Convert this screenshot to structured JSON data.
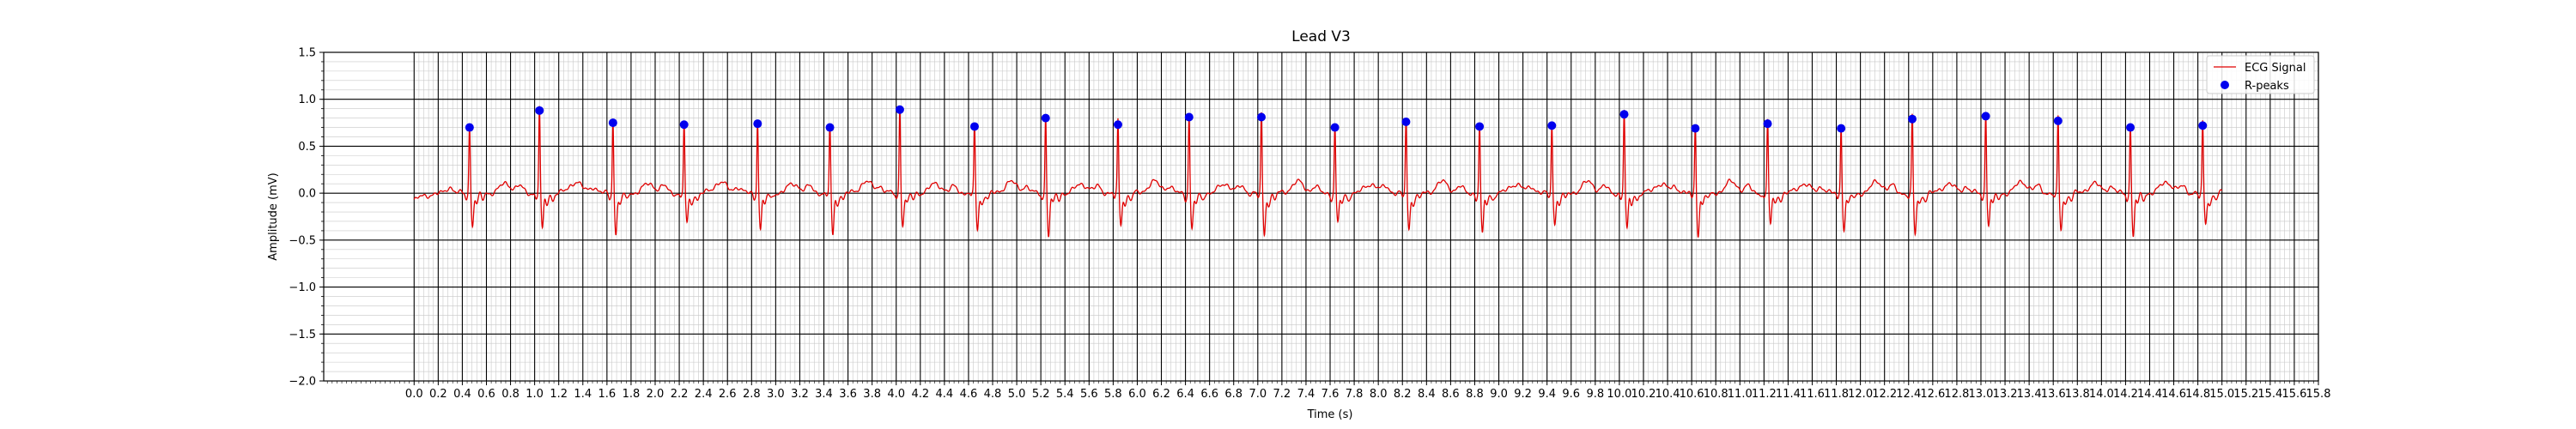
{
  "chart_data": {
    "type": "line",
    "title": "Lead V3",
    "xlabel": "Time (s)",
    "ylabel": "Amplitude (mV)",
    "xlim": [
      -0.75,
      15.8
    ],
    "ylim": [
      -2.0,
      1.5
    ],
    "xticks": [
      0.0,
      0.2,
      0.4,
      0.6,
      0.8,
      1.0,
      1.2,
      1.4,
      1.6,
      1.8,
      2.0,
      2.2,
      2.4,
      2.6,
      2.8,
      3.0,
      3.2,
      3.4,
      3.6,
      3.8,
      4.0,
      4.2,
      4.4,
      4.6,
      4.8,
      5.0,
      5.2,
      5.4,
      5.6,
      5.8,
      6.0,
      6.2,
      6.4,
      6.6,
      6.8,
      7.0,
      7.2,
      7.4,
      7.6,
      7.8,
      8.0,
      8.2,
      8.4,
      8.6,
      8.8,
      9.0,
      9.2,
      9.4,
      9.6,
      9.8,
      10.0,
      10.2,
      10.4,
      10.6,
      10.8,
      11.0,
      11.2,
      11.4,
      11.6,
      11.8,
      12.0,
      12.2,
      12.4,
      12.6,
      12.8,
      13.0,
      13.2,
      13.4,
      13.6,
      13.8,
      14.0,
      14.2,
      14.4,
      14.6,
      14.8,
      15.0,
      15.2,
      15.4,
      15.6,
      15.8
    ],
    "xtick_labels": [
      "0.0",
      "0.2",
      "0.4",
      "0.6",
      "0.8",
      "1.0",
      "1.2",
      "1.4",
      "1.6",
      "1.8",
      "2.0",
      "2.2",
      "2.4",
      "2.6",
      "2.8",
      "3.0",
      "3.2",
      "3.4",
      "3.6",
      "3.8",
      "4.0",
      "4.2",
      "4.4",
      "4.6",
      "4.8",
      "5.0",
      "5.2",
      "5.4",
      "5.6",
      "5.8",
      "6.0",
      "6.2",
      "6.4",
      "6.6",
      "6.8",
      "7.0",
      "7.2",
      "7.4",
      "7.6",
      "7.8",
      "8.0",
      "8.2",
      "8.4",
      "8.6",
      "8.8",
      "9.0",
      "9.2",
      "9.4",
      "9.6",
      "9.8",
      "10.0",
      "10.2",
      "10.4",
      "10.6",
      "10.8",
      "11.0",
      "11.2",
      "11.4",
      "11.6",
      "11.8",
      "12.0",
      "12.2",
      "12.4",
      "12.6",
      "12.8",
      "13.0",
      "13.2",
      "13.4",
      "13.6",
      "13.8",
      "14.0",
      "14.2",
      "14.4",
      "14.6",
      "14.8",
      "15.0",
      "15.2",
      "15.4",
      "15.6",
      "15.8"
    ],
    "yticks": [
      1.5,
      1.0,
      0.5,
      0.0,
      -0.5,
      -1.0,
      -1.5,
      -2.0
    ],
    "ytick_labels": [
      "1.5",
      "1.0",
      "0.5",
      "0.0",
      "−0.5",
      "−1.0",
      "−1.5",
      "−2.0"
    ],
    "grid": {
      "major": true,
      "minor": true,
      "major_color": "#000000",
      "minor_color": "#c8c8c8"
    },
    "legend": {
      "placement": "top-right",
      "entries": [
        "ECG Signal",
        "R-peaks"
      ]
    },
    "series": [
      {
        "name": "ECG Signal",
        "kind": "line",
        "color": "#e00000",
        "x_start": 0.0,
        "x_end": 15.0
      },
      {
        "name": "R-peaks",
        "kind": "scatter",
        "color": "#0000ee",
        "x": [
          0.46,
          1.04,
          1.65,
          2.24,
          2.85,
          3.45,
          4.03,
          4.65,
          5.24,
          5.84,
          6.43,
          7.03,
          7.64,
          8.23,
          8.84,
          9.44,
          10.04,
          10.63,
          11.23,
          11.84,
          12.43,
          13.04,
          13.64,
          14.24,
          14.84
        ],
        "y": [
          0.7,
          0.88,
          0.75,
          0.73,
          0.74,
          0.7,
          0.89,
          0.71,
          0.8,
          0.73,
          0.81,
          0.81,
          0.7,
          0.76,
          0.71,
          0.72,
          0.84,
          0.69,
          0.74,
          0.69,
          0.79,
          0.82,
          0.77,
          0.7,
          0.72
        ]
      }
    ]
  }
}
